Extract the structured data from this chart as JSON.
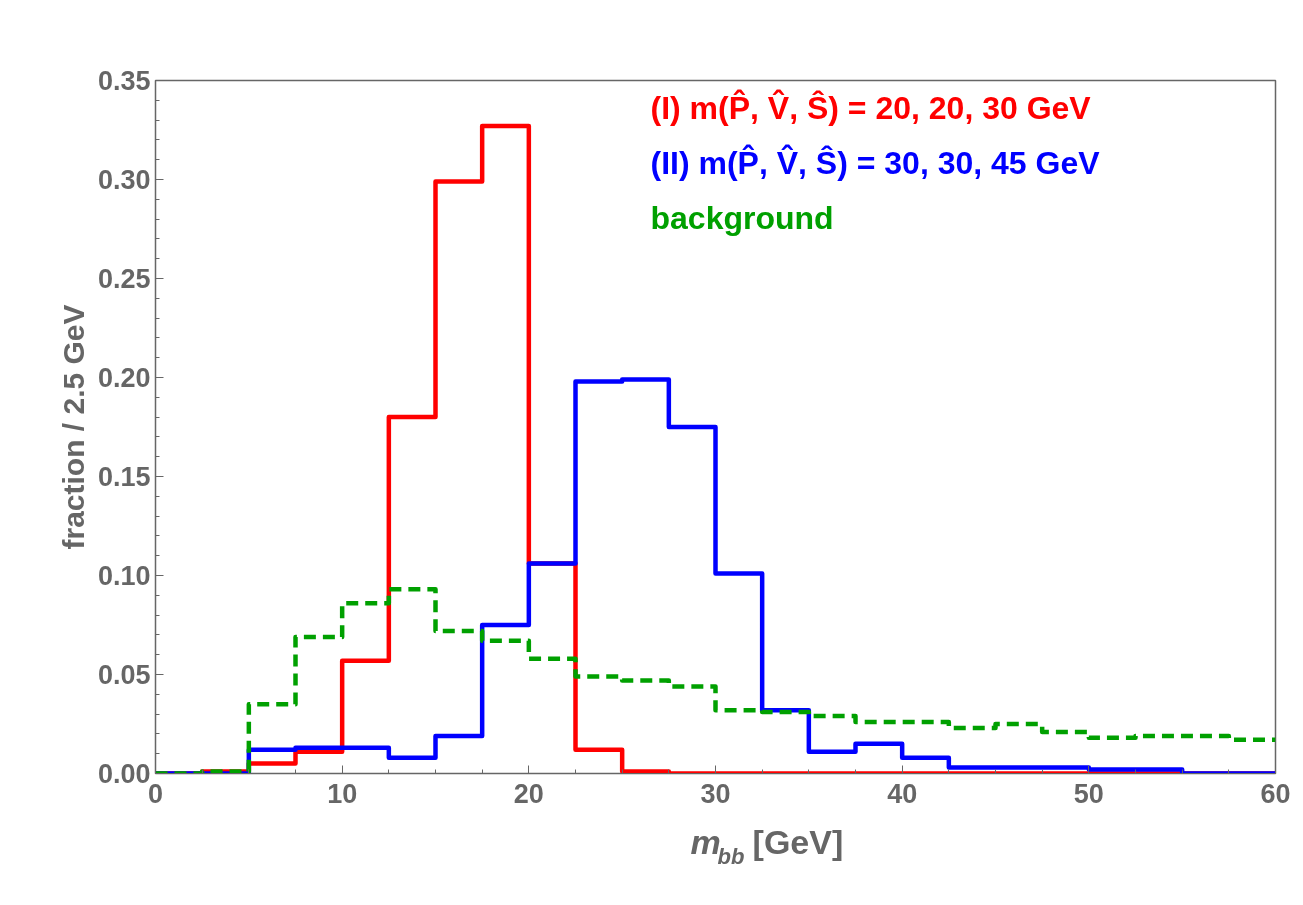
{
  "chart_data": {
    "type": "histogram",
    "xlabel": "m$_{bb}$ [GeV]",
    "ylabel": "fraction / 2.5 GeV",
    "bins": [
      0,
      2.5,
      5,
      7.5,
      10,
      12.5,
      15,
      17.5,
      20,
      22.5,
      25,
      27.5,
      30,
      32.5,
      35,
      37.5,
      40,
      42.5,
      45,
      47.5,
      50,
      52.5,
      55,
      57.5,
      60
    ],
    "series": [
      {
        "name": "(I)  m(P̂, V̂, Ŝ) = 20, 20, 30 GeV",
        "color": "#ff0000",
        "line_style": "solid",
        "values": [
          0,
          0.001,
          0.005,
          0.011,
          0.057,
          0.18,
          0.299,
          0.327,
          0.106,
          0.012,
          0.001,
          0,
          0,
          0,
          0,
          0,
          0,
          0,
          0,
          0,
          0,
          0,
          0,
          0
        ]
      },
      {
        "name": "(II) m(P̂, V̂, Ŝ) = 30, 30, 45 GeV",
        "color": "#0000ff",
        "line_style": "solid",
        "values": [
          0,
          0,
          0.012,
          0.013,
          0.013,
          0.008,
          0.019,
          0.075,
          0.106,
          0.198,
          0.199,
          0.175,
          0.101,
          0.032,
          0.011,
          0.015,
          0.008,
          0.003,
          0.003,
          0.003,
          0.002,
          0.002,
          0,
          0
        ]
      },
      {
        "name": "background",
        "color": "#00a000",
        "line_style": "dashed",
        "values": [
          0,
          0.001,
          0.035,
          0.069,
          0.086,
          0.093,
          0.072,
          0.067,
          0.058,
          0.049,
          0.047,
          0.044,
          0.032,
          0.031,
          0.029,
          0.026,
          0.026,
          0.023,
          0.025,
          0.021,
          0.018,
          0.019,
          0.019,
          0.017
        ]
      }
    ],
    "xlim": [
      0,
      60
    ],
    "ylim": [
      0,
      0.35
    ],
    "xticks": [
      0,
      10,
      20,
      30,
      40,
      50,
      60
    ],
    "yticks": [
      {
        "value": 0,
        "label": "0.00"
      },
      {
        "value": 0.05,
        "label": "0.05"
      },
      {
        "value": 0.1,
        "label": "0.10"
      },
      {
        "value": 0.15,
        "label": "0.15"
      },
      {
        "value": 0.2,
        "label": "0.20"
      },
      {
        "value": 0.25,
        "label": "0.25"
      },
      {
        "value": 0.3,
        "label": "0.30"
      },
      {
        "value": 0.35,
        "label": "0.35"
      }
    ],
    "grid": false,
    "legend": "top right"
  }
}
